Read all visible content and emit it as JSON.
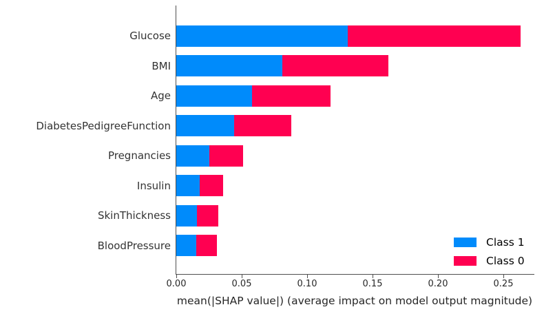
{
  "chart_data": {
    "type": "bar",
    "orientation": "horizontal",
    "stacked": true,
    "title": "",
    "xlabel": "mean(|SHAP value|) (average impact on model output magnitude)",
    "ylabel": "",
    "categories": [
      "Glucose",
      "BMI",
      "Age",
      "DiabetesPedigreeFunction",
      "Pregnancies",
      "Insulin",
      "SkinThickness",
      "BloodPressure"
    ],
    "series": [
      {
        "name": "Class 1",
        "color": "#008bfb",
        "values": [
          0.131,
          0.081,
          0.058,
          0.044,
          0.025,
          0.018,
          0.016,
          0.015
        ]
      },
      {
        "name": "Class 0",
        "color": "#ff0051",
        "values": [
          0.132,
          0.081,
          0.06,
          0.044,
          0.026,
          0.018,
          0.016,
          0.016
        ]
      }
    ],
    "totals": [
      0.263,
      0.162,
      0.118,
      0.088,
      0.051,
      0.036,
      0.032,
      0.031
    ],
    "xlim": [
      0.0,
      0.2734
    ],
    "x_tick_values": [
      0.0,
      0.05,
      0.1,
      0.15,
      0.2,
      0.25
    ],
    "x_tick_labels": [
      "0.00",
      "0.05",
      "0.10",
      "0.15",
      "0.20",
      "0.25"
    ],
    "grid": false,
    "legend": {
      "position": "lower right",
      "entries": [
        "Class 1",
        "Class 0"
      ]
    },
    "axis_color": "#4d4d4d",
    "label_color": "#333333"
  }
}
